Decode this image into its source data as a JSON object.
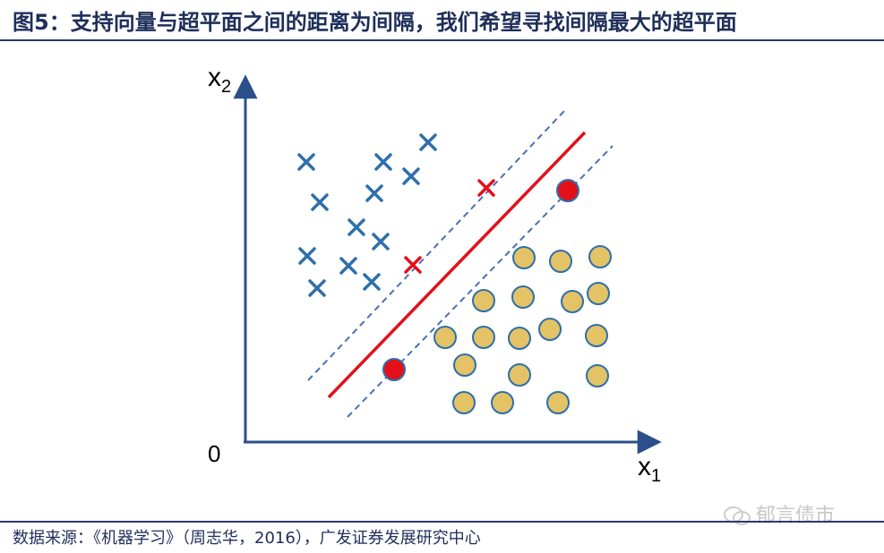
{
  "title": "图5：支持向量与超平面之间的距离为间隔，我们希望寻找间隔最大的超平面",
  "diagram": {
    "origin_label": "0",
    "x_axis_label": "x",
    "x_axis_sub": "1",
    "y_axis_label": "x",
    "y_axis_sub": "2",
    "colors": {
      "class_x": "#2e6fab",
      "support_vector_x": "#e3101a",
      "class_circle_fill": "#e3c365",
      "class_circle_stroke": "#2e6fab",
      "support_vector_circle": "#e3101a",
      "hyperplane": "#e3101a",
      "margin": "#4a6fb5",
      "axis": "#2a4f8a"
    }
  },
  "source": "数据来源：《机器学习》（周志华，2016），广发证券发展研究中心",
  "watermark": "郁言债市"
}
